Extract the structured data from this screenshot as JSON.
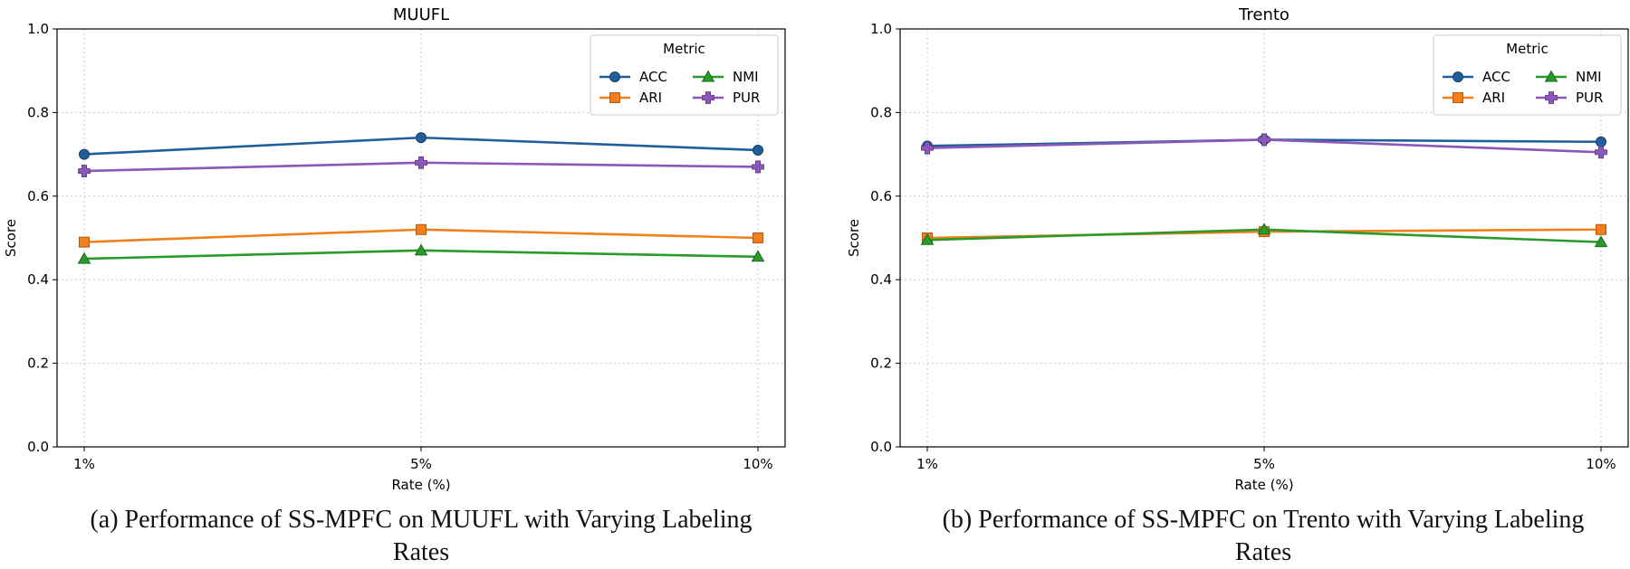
{
  "captions": {
    "a": "(a) Performance of SS-MPFC on MUUFL with Varying Labeling Rates",
    "b": "(b) Performance of SS-MPFC on Trento with Varying Labeling Rates"
  },
  "colors": {
    "ACC": "#1f5f9e",
    "ARI": "#f07f1c",
    "NMI": "#2a9a2a",
    "PUR": "#8b57b8"
  },
  "chart_data": [
    {
      "type": "line",
      "title": "MUUFL",
      "xlabel": "Rate (%)",
      "ylabel": "Score",
      "categories": [
        "1%",
        "5%",
        "10%"
      ],
      "ylim": [
        0,
        1.0
      ],
      "yticks": [
        "0.0",
        "0.2",
        "0.4",
        "0.6",
        "0.8",
        "1.0"
      ],
      "grid": true,
      "legend": {
        "title": "Metric",
        "placement": "top-right",
        "columns": 2
      },
      "series": [
        {
          "name": "ACC",
          "marker": "circle",
          "values": [
            0.7,
            0.74,
            0.71
          ]
        },
        {
          "name": "ARI",
          "marker": "square",
          "values": [
            0.49,
            0.52,
            0.5
          ]
        },
        {
          "name": "NMI",
          "marker": "triangle",
          "values": [
            0.45,
            0.47,
            0.455
          ]
        },
        {
          "name": "PUR",
          "marker": "plus",
          "values": [
            0.66,
            0.68,
            0.67
          ]
        }
      ]
    },
    {
      "type": "line",
      "title": "Trento",
      "xlabel": "Rate (%)",
      "ylabel": "Score",
      "categories": [
        "1%",
        "5%",
        "10%"
      ],
      "ylim": [
        0,
        1.0
      ],
      "yticks": [
        "0.0",
        "0.2",
        "0.4",
        "0.6",
        "0.8",
        "1.0"
      ],
      "grid": true,
      "legend": {
        "title": "Metric",
        "placement": "top-right",
        "columns": 2
      },
      "series": [
        {
          "name": "ACC",
          "marker": "circle",
          "values": [
            0.72,
            0.735,
            0.73
          ]
        },
        {
          "name": "ARI",
          "marker": "square",
          "values": [
            0.5,
            0.515,
            0.52
          ]
        },
        {
          "name": "NMI",
          "marker": "triangle",
          "values": [
            0.495,
            0.52,
            0.49
          ]
        },
        {
          "name": "PUR",
          "marker": "plus",
          "values": [
            0.715,
            0.735,
            0.705
          ]
        }
      ]
    }
  ]
}
